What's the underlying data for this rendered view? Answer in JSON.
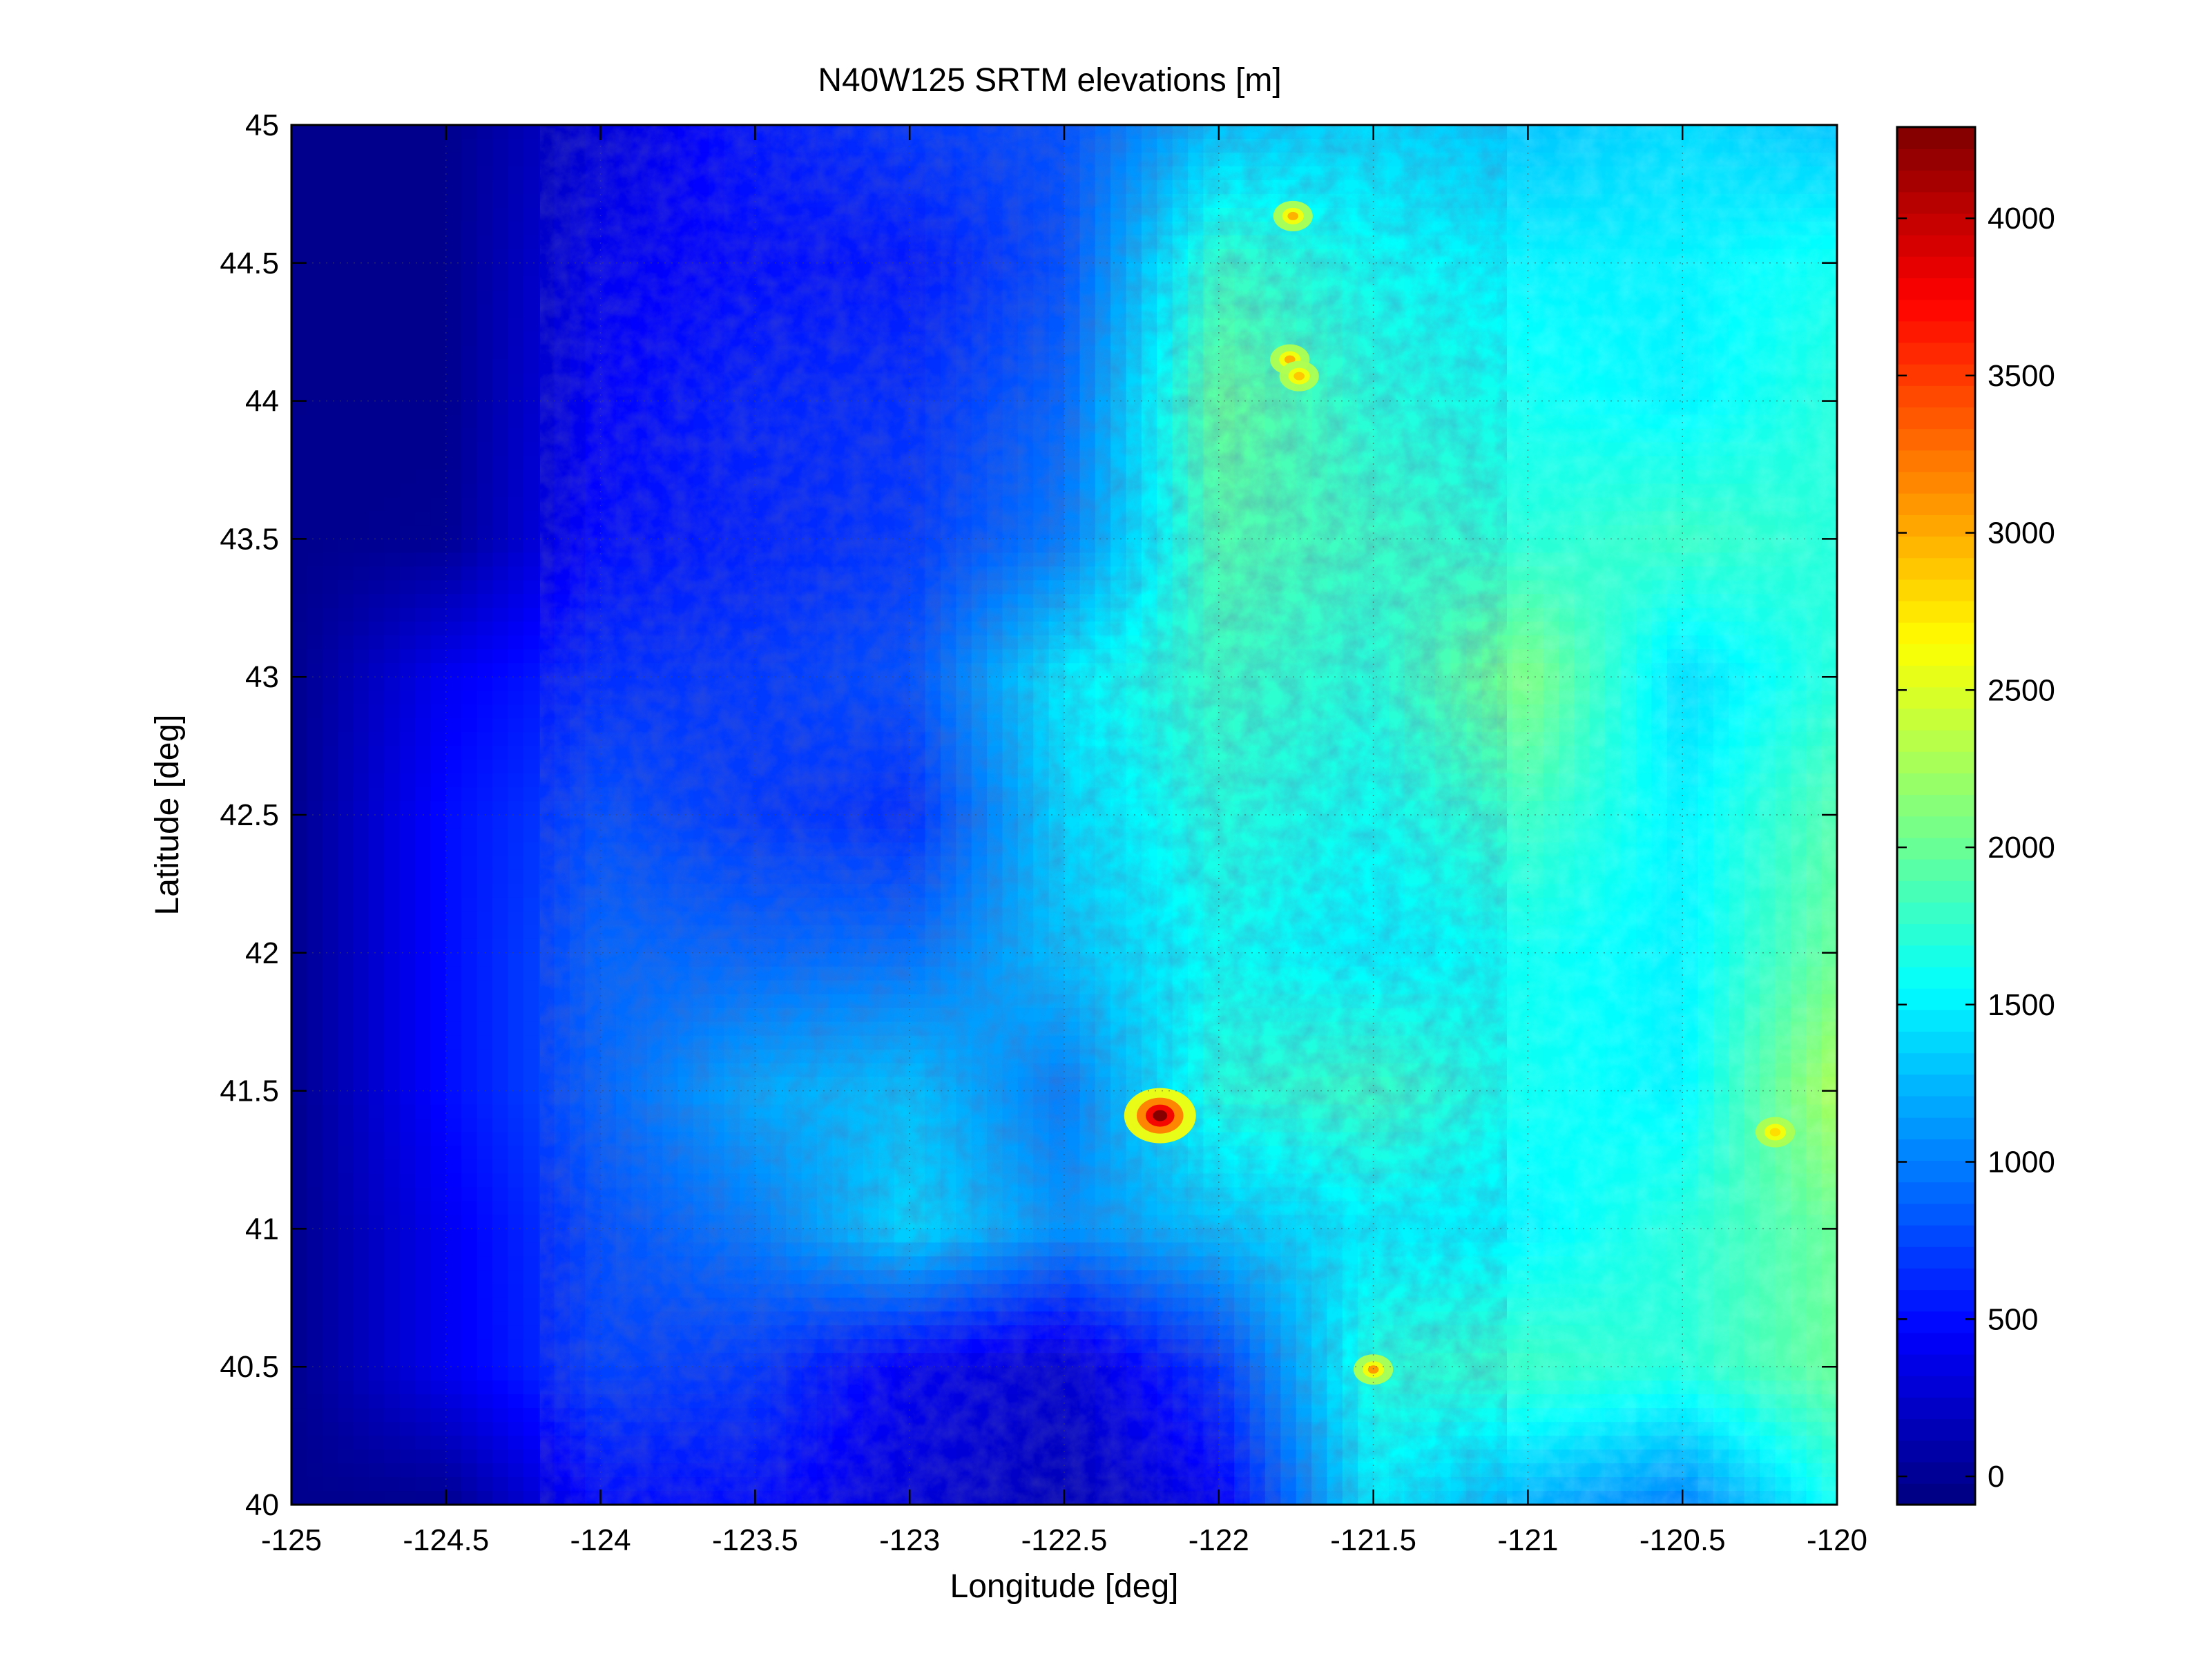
{
  "chart_data": {
    "type": "heatmap",
    "title": "N40W125 SRTM elevations [m]",
    "xlabel": "Longitude [deg]",
    "ylabel": "Latitude [deg]",
    "xlim": [
      -125,
      -120
    ],
    "ylim": [
      40,
      45
    ],
    "x_ticks": [
      -125,
      -124.5,
      -124,
      -123.5,
      -123,
      -122.5,
      -122,
      -121.5,
      -121,
      -120.5,
      -120
    ],
    "x_tick_labels": [
      "-125",
      "-124.5",
      "-124",
      "-123.5",
      "-123",
      "-122.5",
      "-122",
      "-121.5",
      "-121",
      "-120.5",
      "-120"
    ],
    "y_ticks": [
      40,
      40.5,
      41,
      41.5,
      42,
      42.5,
      43,
      43.5,
      44,
      44.5,
      45
    ],
    "y_tick_labels": [
      "40",
      "40.5",
      "41",
      "41.5",
      "42",
      "42.5",
      "43",
      "43.5",
      "44",
      "44.5",
      "45"
    ],
    "grid": true,
    "colormap": "jet",
    "colorbar": {
      "clim": [
        -90,
        4290
      ],
      "ticks": [
        0,
        500,
        1000,
        1500,
        2000,
        2500,
        3000,
        3500,
        4000
      ],
      "tick_labels": [
        "0",
        "500",
        "1000",
        "1500",
        "2000",
        "2500",
        "3000",
        "3500",
        "4000"
      ]
    },
    "lat": [
      45.0,
      44.5,
      44.0,
      43.5,
      43.0,
      42.5,
      42.0,
      41.5,
      41.0,
      40.5,
      40.0
    ],
    "lon": [
      -125.0,
      -124.5,
      -124.0,
      -123.5,
      -123.0,
      -122.5,
      -122.0,
      -121.5,
      -121.0,
      -120.5,
      -120.0
    ],
    "elevation_grid_m": [
      [
        -30,
        -30,
        300,
        550,
        700,
        800,
        1300,
        1400,
        1300,
        1400,
        1300
      ],
      [
        -30,
        -30,
        400,
        500,
        550,
        800,
        1800,
        1600,
        1500,
        1500,
        1600
      ],
      [
        -30,
        -30,
        450,
        600,
        650,
        900,
        2000,
        1700,
        1600,
        1500,
        1700
      ],
      [
        -30,
        -10,
        500,
        600,
        700,
        1000,
        1900,
        1800,
        1700,
        1800,
        1700
      ],
      [
        -30,
        400,
        650,
        700,
        800,
        1500,
        1800,
        1700,
        2100,
        1400,
        1700
      ],
      [
        -30,
        500,
        800,
        700,
        650,
        1400,
        1700,
        1600,
        1800,
        1500,
        1900
      ],
      [
        -30,
        500,
        900,
        900,
        950,
        1300,
        1600,
        1500,
        1600,
        1500,
        2000
      ],
      [
        -30,
        500,
        900,
        1200,
        1300,
        1000,
        1700,
        1800,
        1600,
        1500,
        2300
      ],
      [
        -30,
        400,
        800,
        1000,
        1400,
        1100,
        1300,
        1500,
        1500,
        1700,
        2000
      ],
      [
        -30,
        400,
        750,
        700,
        400,
        250,
        700,
        1700,
        1800,
        1700,
        2000
      ],
      [
        -30,
        -30,
        500,
        500,
        300,
        150,
        400,
        1500,
        1200,
        1000,
        1600
      ]
    ],
    "peaks": [
      {
        "lon": -122.19,
        "lat": 41.41,
        "elevation_m": 4300
      },
      {
        "lon": -121.5,
        "lat": 40.49,
        "elevation_m": 3100
      },
      {
        "lon": -121.76,
        "lat": 44.67,
        "elevation_m": 3000
      },
      {
        "lon": -121.77,
        "lat": 44.15,
        "elevation_m": 3000
      },
      {
        "lon": -121.74,
        "lat": 44.09,
        "elevation_m": 2900
      },
      {
        "lon": -120.2,
        "lat": 41.35,
        "elevation_m": 2800
      }
    ],
    "colors": {
      "jet_low": "#00007f",
      "jet_high": "#7f0000",
      "ocean": "#00008f"
    }
  }
}
